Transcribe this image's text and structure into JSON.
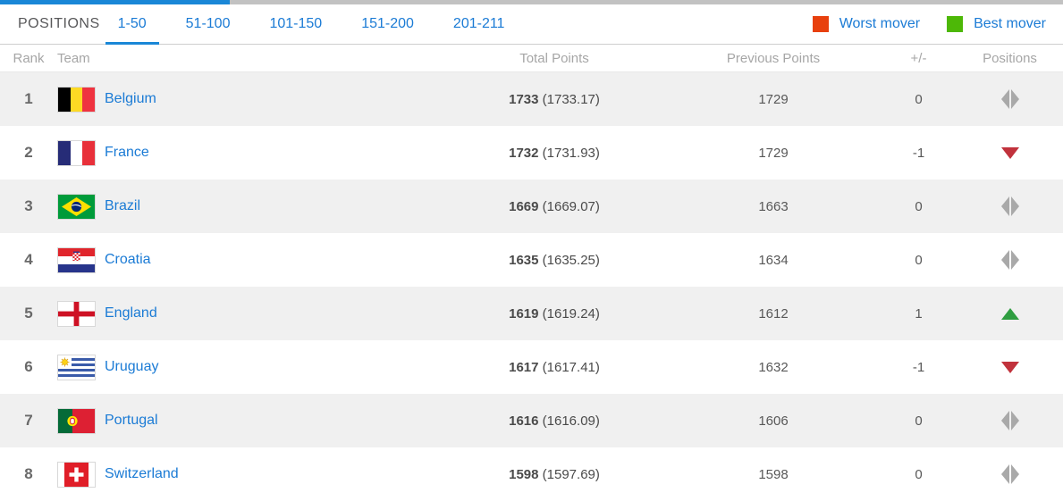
{
  "progress": {
    "filled_pct": 21.6,
    "fill_color": "#1a87d7",
    "track_color": "#c2c2c2"
  },
  "tabbar": {
    "title": "POSITIONS",
    "tabs": [
      {
        "label": "1-50",
        "active": true
      },
      {
        "label": "51-100",
        "active": false
      },
      {
        "label": "101-150",
        "active": false
      },
      {
        "label": "151-200",
        "active": false
      },
      {
        "label": "201-211",
        "active": false
      }
    ]
  },
  "legend": {
    "worst": {
      "label": "Worst mover",
      "color": "#e8400d"
    },
    "best": {
      "label": "Best mover",
      "color": "#4db807"
    }
  },
  "table": {
    "headers": {
      "rank": "Rank",
      "team": "Team",
      "total_points": "Total Points",
      "previous_points": "Previous Points",
      "change": "+/-",
      "positions": "Positions"
    },
    "rows": [
      {
        "rank": "1",
        "team": "Belgium",
        "flag": "be",
        "total": "1733",
        "total_detail": "(1733.17)",
        "previous": "1729",
        "change": "0",
        "movement": "none"
      },
      {
        "rank": "2",
        "team": "France",
        "flag": "fr",
        "total": "1732",
        "total_detail": "(1731.93)",
        "previous": "1729",
        "change": "-1",
        "movement": "down"
      },
      {
        "rank": "3",
        "team": "Brazil",
        "flag": "br",
        "total": "1669",
        "total_detail": "(1669.07)",
        "previous": "1663",
        "change": "0",
        "movement": "none"
      },
      {
        "rank": "4",
        "team": "Croatia",
        "flag": "hr",
        "total": "1635",
        "total_detail": "(1635.25)",
        "previous": "1634",
        "change": "0",
        "movement": "none"
      },
      {
        "rank": "5",
        "team": "England",
        "flag": "gb-eng",
        "total": "1619",
        "total_detail": "(1619.24)",
        "previous": "1612",
        "change": "1",
        "movement": "up"
      },
      {
        "rank": "6",
        "team": "Uruguay",
        "flag": "uy",
        "total": "1617",
        "total_detail": "(1617.41)",
        "previous": "1632",
        "change": "-1",
        "movement": "down"
      },
      {
        "rank": "7",
        "team": "Portugal",
        "flag": "pt",
        "total": "1616",
        "total_detail": "(1616.09)",
        "previous": "1606",
        "change": "0",
        "movement": "none"
      },
      {
        "rank": "8",
        "team": "Switzerland",
        "flag": "ch",
        "total": "1598",
        "total_detail": "(1597.69)",
        "previous": "1598",
        "change": "0",
        "movement": "none"
      }
    ]
  },
  "movement_colors": {
    "up": "#2f9e41",
    "down": "#c1323c",
    "neutral": "#a9a9a9"
  }
}
